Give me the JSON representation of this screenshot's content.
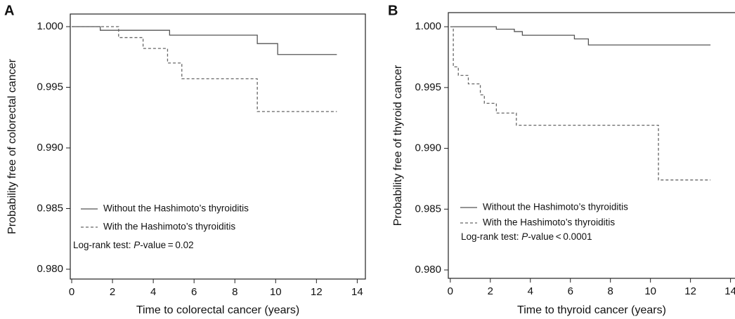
{
  "chart_data": [
    {
      "type": "line",
      "step": "post",
      "panel_label": "A",
      "xlabel": "Time to colorectal cancer (years)",
      "ylabel": "Probability free of colorectal cancer",
      "xlim": [
        -0.07,
        14.4
      ],
      "ylim": [
        0.97919,
        1.00104
      ],
      "xticks": [
        0,
        2,
        4,
        6,
        8,
        10,
        12,
        14
      ],
      "yticks": [
        {
          "value": 1,
          "label": "1.000"
        },
        0.995,
        {
          "value": 0.99,
          "label": "0.990"
        },
        0.985,
        {
          "value": 0.98,
          "label": "0.980"
        }
      ],
      "legend": "lower left",
      "series": [
        {
          "name": "Without the Hashimoto’s thyroiditis",
          "color": "#555555",
          "linestyle": "solid",
          "x": [
            0,
            1.4,
            4.8,
            9.1,
            10.1,
            13
          ],
          "values": [
            1.0,
            0.9997,
            0.9993,
            0.9986,
            0.9977,
            0.9977
          ]
        },
        {
          "name": "With the Hashimoto’s thyroiditis",
          "color": "#666666",
          "linestyle": "dashed",
          "x": [
            0,
            2.3,
            3.5,
            4.7,
            5.4,
            9.1,
            13
          ],
          "values": [
            1.0,
            0.9991,
            0.9982,
            0.997,
            0.9957,
            0.993,
            0.993
          ]
        }
      ],
      "annotation": {
        "prefix": "Log-rank test: ",
        "italic": "P",
        "suffix": "-value = 0.02"
      }
    },
    {
      "type": "line",
      "step": "post",
      "panel_label": "B",
      "xlabel": "Time to thyroid cancer (years)",
      "ylabel": "Probability free of thyroid cancer",
      "xlim": [
        -0.1,
        14.4
      ],
      "ylim": [
        0.97931,
        1.00116
      ],
      "xticks": [
        0,
        2,
        4,
        6,
        8,
        10,
        12,
        14
      ],
      "yticks": [
        {
          "value": 1,
          "label": "1.000"
        },
        0.995,
        {
          "value": 0.99,
          "label": "0.990"
        },
        0.985,
        {
          "value": 0.98,
          "label": "0.980"
        }
      ],
      "legend": "lower left",
      "series": [
        {
          "name": "Without the Hashimoto’s thyroiditis",
          "color": "#555555",
          "linestyle": "solid",
          "x": [
            0,
            2.3,
            3.2,
            3.6,
            6.2,
            6.9,
            13
          ],
          "values": [
            1.0,
            0.9998,
            0.9996,
            0.9993,
            0.999,
            0.9985,
            0.9985
          ]
        },
        {
          "name": "With the Hashimoto’s thyroiditis",
          "color": "#666666",
          "linestyle": "dashed",
          "x": [
            0,
            0.15,
            0.4,
            0.9,
            1.5,
            1.7,
            2.3,
            3.3,
            10.4,
            13
          ],
          "values": [
            1.0,
            0.9967,
            0.996,
            0.9953,
            0.9944,
            0.9937,
            0.9929,
            0.9919,
            0.9874,
            0.9874
          ]
        }
      ],
      "annotation": {
        "prefix": "Log-rank test: ",
        "italic": "P",
        "suffix": "-value < 0.0001"
      }
    }
  ]
}
